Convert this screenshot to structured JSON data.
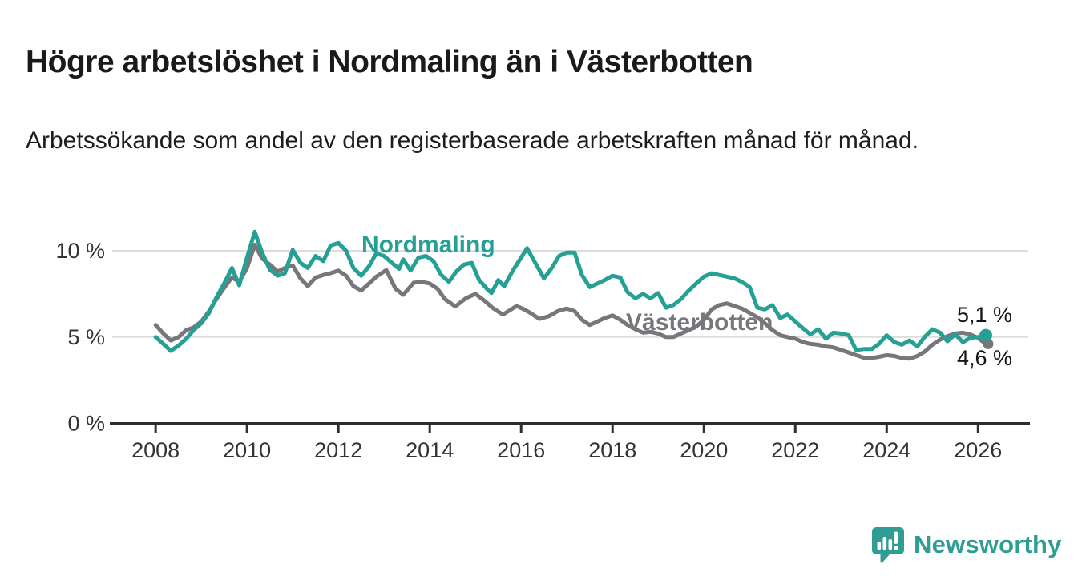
{
  "header": {
    "title": "Högre arbetslöshet i Nordmaling än i Västerbotten",
    "subtitle": "Arbetssökande som andel av den registerbaserade arbetskraften månad för månad."
  },
  "branding": {
    "name": "Newsworthy",
    "logo_icon": "speech-bubble-bar-chart-icon",
    "color": "#2f9d94"
  },
  "colors": {
    "nordmaling": "#26a095",
    "vasterbotten": "#77777b",
    "grid": "#dddddd",
    "axis": "#2d2d2d",
    "tick_text": "#333333",
    "title_text": "#1a1a1a"
  },
  "chart_data": {
    "type": "line",
    "title": "Högre arbetslöshet i Nordmaling än i Västerbotten",
    "subtitle": "Arbetssökande som andel av den registerbaserade arbetskraften månad för månad.",
    "unit": "percent of registered labour force",
    "grid": "horizontal",
    "legend_position": "inline-labels",
    "x_axis": {
      "min": 2007.05,
      "max": 2027.1,
      "ticks": [
        2008,
        2010,
        2012,
        2014,
        2016,
        2018,
        2020,
        2022,
        2024,
        2026
      ]
    },
    "y_axis": {
      "min": 0,
      "max": 12,
      "ticks": [
        {
          "value": 0,
          "label": "0 %"
        },
        {
          "value": 5,
          "label": "5 %"
        },
        {
          "value": 10,
          "label": "10 %"
        }
      ]
    },
    "series": [
      {
        "name": "Nordmaling",
        "color": "#26a095",
        "end_label": "5,1 %",
        "end_value": 5.1,
        "end_dot": true,
        "points": [
          [
            2008.0,
            5.0
          ],
          [
            2008.17,
            4.6
          ],
          [
            2008.33,
            4.2
          ],
          [
            2008.5,
            4.5
          ],
          [
            2008.67,
            4.9
          ],
          [
            2008.83,
            5.4
          ],
          [
            2009.0,
            5.8
          ],
          [
            2009.17,
            6.4
          ],
          [
            2009.33,
            7.3
          ],
          [
            2009.5,
            8.1
          ],
          [
            2009.67,
            9.0
          ],
          [
            2009.83,
            8.0
          ],
          [
            2010.0,
            9.6
          ],
          [
            2010.17,
            11.1
          ],
          [
            2010.33,
            9.9
          ],
          [
            2010.5,
            8.9
          ],
          [
            2010.67,
            8.55
          ],
          [
            2010.83,
            8.7
          ],
          [
            2011.0,
            10.05
          ],
          [
            2011.17,
            9.3
          ],
          [
            2011.33,
            9.0
          ],
          [
            2011.5,
            9.7
          ],
          [
            2011.67,
            9.4
          ],
          [
            2011.83,
            10.3
          ],
          [
            2012.0,
            10.45
          ],
          [
            2012.17,
            10.0
          ],
          [
            2012.33,
            9.0
          ],
          [
            2012.5,
            8.55
          ],
          [
            2012.67,
            9.1
          ],
          [
            2012.83,
            9.85
          ],
          [
            2013.0,
            9.7
          ],
          [
            2013.17,
            9.3
          ],
          [
            2013.33,
            8.95
          ],
          [
            2013.42,
            9.5
          ],
          [
            2013.58,
            8.85
          ],
          [
            2013.75,
            9.6
          ],
          [
            2013.92,
            9.7
          ],
          [
            2014.08,
            9.4
          ],
          [
            2014.25,
            8.6
          ],
          [
            2014.42,
            8.2
          ],
          [
            2014.58,
            8.8
          ],
          [
            2014.75,
            9.2
          ],
          [
            2014.92,
            9.3
          ],
          [
            2015.08,
            8.3
          ],
          [
            2015.25,
            7.8
          ],
          [
            2015.35,
            7.55
          ],
          [
            2015.5,
            8.3
          ],
          [
            2015.63,
            7.95
          ],
          [
            2015.83,
            8.9
          ],
          [
            2016.0,
            9.6
          ],
          [
            2016.13,
            10.15
          ],
          [
            2016.33,
            9.2
          ],
          [
            2016.5,
            8.4
          ],
          [
            2016.67,
            9.0
          ],
          [
            2016.83,
            9.7
          ],
          [
            2017.0,
            9.9
          ],
          [
            2017.17,
            9.9
          ],
          [
            2017.33,
            8.6
          ],
          [
            2017.5,
            7.9
          ],
          [
            2017.67,
            8.1
          ],
          [
            2017.83,
            8.3
          ],
          [
            2018.0,
            8.55
          ],
          [
            2018.17,
            8.45
          ],
          [
            2018.33,
            7.6
          ],
          [
            2018.5,
            7.25
          ],
          [
            2018.67,
            7.5
          ],
          [
            2018.83,
            7.25
          ],
          [
            2019.0,
            7.55
          ],
          [
            2019.17,
            6.7
          ],
          [
            2019.33,
            6.85
          ],
          [
            2019.5,
            7.2
          ],
          [
            2019.67,
            7.7
          ],
          [
            2019.83,
            8.1
          ],
          [
            2020.0,
            8.5
          ],
          [
            2020.17,
            8.7
          ],
          [
            2020.33,
            8.6
          ],
          [
            2020.5,
            8.5
          ],
          [
            2020.67,
            8.4
          ],
          [
            2020.83,
            8.2
          ],
          [
            2021.0,
            7.9
          ],
          [
            2021.17,
            6.7
          ],
          [
            2021.33,
            6.6
          ],
          [
            2021.5,
            6.85
          ],
          [
            2021.67,
            6.1
          ],
          [
            2021.83,
            6.3
          ],
          [
            2022.0,
            5.9
          ],
          [
            2022.17,
            5.5
          ],
          [
            2022.33,
            5.15
          ],
          [
            2022.5,
            5.45
          ],
          [
            2022.67,
            4.9
          ],
          [
            2022.83,
            5.25
          ],
          [
            2023.0,
            5.2
          ],
          [
            2023.17,
            5.1
          ],
          [
            2023.33,
            4.25
          ],
          [
            2023.5,
            4.3
          ],
          [
            2023.67,
            4.3
          ],
          [
            2023.83,
            4.6
          ],
          [
            2024.0,
            5.1
          ],
          [
            2024.17,
            4.7
          ],
          [
            2024.33,
            4.55
          ],
          [
            2024.5,
            4.8
          ],
          [
            2024.67,
            4.45
          ],
          [
            2024.83,
            5.0
          ],
          [
            2025.0,
            5.45
          ],
          [
            2025.17,
            5.25
          ],
          [
            2025.33,
            4.75
          ],
          [
            2025.5,
            5.15
          ],
          [
            2025.67,
            4.7
          ],
          [
            2025.83,
            4.95
          ],
          [
            2026.0,
            5.0
          ],
          [
            2026.17,
            5.1
          ]
        ]
      },
      {
        "name": "Västerbotten",
        "color": "#77777b",
        "end_label": "4,6 %",
        "end_value": 4.6,
        "end_dot": true,
        "points": [
          [
            2008.0,
            5.7
          ],
          [
            2008.17,
            5.2
          ],
          [
            2008.33,
            4.8
          ],
          [
            2008.5,
            5.0
          ],
          [
            2008.67,
            5.4
          ],
          [
            2008.83,
            5.55
          ],
          [
            2009.0,
            5.9
          ],
          [
            2009.17,
            6.5
          ],
          [
            2009.33,
            7.2
          ],
          [
            2009.5,
            7.85
          ],
          [
            2009.67,
            8.45
          ],
          [
            2009.83,
            8.2
          ],
          [
            2010.0,
            9.0
          ],
          [
            2010.17,
            10.35
          ],
          [
            2010.33,
            9.55
          ],
          [
            2010.5,
            9.2
          ],
          [
            2010.67,
            8.8
          ],
          [
            2010.83,
            9.0
          ],
          [
            2011.0,
            9.15
          ],
          [
            2011.17,
            8.4
          ],
          [
            2011.33,
            7.95
          ],
          [
            2011.5,
            8.45
          ],
          [
            2011.67,
            8.6
          ],
          [
            2011.83,
            8.7
          ],
          [
            2012.0,
            8.85
          ],
          [
            2012.17,
            8.55
          ],
          [
            2012.33,
            7.95
          ],
          [
            2012.5,
            7.7
          ],
          [
            2012.67,
            8.1
          ],
          [
            2012.83,
            8.5
          ],
          [
            2013.05,
            8.88
          ],
          [
            2013.25,
            7.8
          ],
          [
            2013.42,
            7.45
          ],
          [
            2013.65,
            8.15
          ],
          [
            2013.83,
            8.2
          ],
          [
            2014.0,
            8.1
          ],
          [
            2014.17,
            7.8
          ],
          [
            2014.33,
            7.2
          ],
          [
            2014.56,
            6.77
          ],
          [
            2014.79,
            7.25
          ],
          [
            2015.0,
            7.5
          ],
          [
            2015.2,
            7.1
          ],
          [
            2015.37,
            6.7
          ],
          [
            2015.6,
            6.3
          ],
          [
            2015.9,
            6.8
          ],
          [
            2016.05,
            6.62
          ],
          [
            2016.2,
            6.4
          ],
          [
            2016.4,
            6.05
          ],
          [
            2016.6,
            6.2
          ],
          [
            2016.8,
            6.5
          ],
          [
            2017.0,
            6.65
          ],
          [
            2017.17,
            6.5
          ],
          [
            2017.33,
            6.0
          ],
          [
            2017.5,
            5.7
          ],
          [
            2017.67,
            5.9
          ],
          [
            2017.83,
            6.1
          ],
          [
            2018.0,
            6.25
          ],
          [
            2018.17,
            6.0
          ],
          [
            2018.33,
            5.7
          ],
          [
            2018.5,
            5.45
          ],
          [
            2018.67,
            5.25
          ],
          [
            2018.83,
            5.3
          ],
          [
            2019.0,
            5.2
          ],
          [
            2019.17,
            5.0
          ],
          [
            2019.33,
            5.0
          ],
          [
            2019.5,
            5.2
          ],
          [
            2019.67,
            5.4
          ],
          [
            2019.83,
            5.6
          ],
          [
            2020.0,
            6.0
          ],
          [
            2020.17,
            6.6
          ],
          [
            2020.33,
            6.85
          ],
          [
            2020.5,
            6.95
          ],
          [
            2020.67,
            6.8
          ],
          [
            2020.83,
            6.65
          ],
          [
            2021.0,
            6.4
          ],
          [
            2021.17,
            6.15
          ],
          [
            2021.33,
            5.8
          ],
          [
            2021.5,
            5.4
          ],
          [
            2021.67,
            5.1
          ],
          [
            2021.83,
            5.0
          ],
          [
            2022.0,
            4.9
          ],
          [
            2022.17,
            4.7
          ],
          [
            2022.33,
            4.6
          ],
          [
            2022.5,
            4.55
          ],
          [
            2022.67,
            4.45
          ],
          [
            2022.83,
            4.4
          ],
          [
            2023.0,
            4.25
          ],
          [
            2023.17,
            4.1
          ],
          [
            2023.33,
            3.95
          ],
          [
            2023.5,
            3.8
          ],
          [
            2023.67,
            3.78
          ],
          [
            2023.83,
            3.85
          ],
          [
            2024.0,
            3.95
          ],
          [
            2024.17,
            3.9
          ],
          [
            2024.33,
            3.78
          ],
          [
            2024.5,
            3.75
          ],
          [
            2024.67,
            3.9
          ],
          [
            2024.83,
            4.15
          ],
          [
            2025.0,
            4.55
          ],
          [
            2025.17,
            4.85
          ],
          [
            2025.33,
            5.05
          ],
          [
            2025.5,
            5.2
          ],
          [
            2025.67,
            5.25
          ],
          [
            2025.83,
            5.15
          ],
          [
            2026.0,
            4.95
          ],
          [
            2026.17,
            4.6
          ]
        ]
      }
    ]
  }
}
